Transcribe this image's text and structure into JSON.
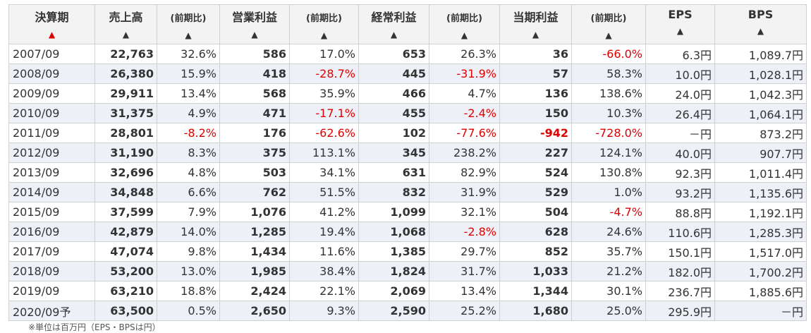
{
  "headers": [
    {
      "label": "決算期",
      "sort_active": true
    },
    {
      "label": "売上高",
      "sort_active": false
    },
    {
      "label": "(前期比)",
      "sort_active": false
    },
    {
      "label": "営業利益",
      "sort_active": false
    },
    {
      "label": "(前期比)",
      "sort_active": false
    },
    {
      "label": "経常利益",
      "sort_active": false
    },
    {
      "label": "(前期比)",
      "sort_active": false
    },
    {
      "label": "当期利益",
      "sort_active": false
    },
    {
      "label": "(前期比)",
      "sort_active": false
    },
    {
      "label": "EPS",
      "sort_active": false
    },
    {
      "label": "BPS",
      "sort_active": false
    }
  ],
  "sort_symbol": "▲",
  "rows": [
    {
      "period": "2007/09",
      "sales": "22,763",
      "sales_chg": "32.6%",
      "op": "586",
      "op_chg": "17.0%",
      "ord": "653",
      "ord_chg": "26.3%",
      "net": "36",
      "net_chg": "-66.0%",
      "eps": "6.3円",
      "bps": "1,089.7円"
    },
    {
      "period": "2008/09",
      "sales": "26,380",
      "sales_chg": "15.9%",
      "op": "418",
      "op_chg": "-28.7%",
      "ord": "445",
      "ord_chg": "-31.9%",
      "net": "57",
      "net_chg": "58.3%",
      "eps": "10.0円",
      "bps": "1,028.1円"
    },
    {
      "period": "2009/09",
      "sales": "29,911",
      "sales_chg": "13.4%",
      "op": "568",
      "op_chg": "35.9%",
      "ord": "466",
      "ord_chg": "4.7%",
      "net": "136",
      "net_chg": "138.6%",
      "eps": "24.0円",
      "bps": "1,042.3円"
    },
    {
      "period": "2010/09",
      "sales": "31,375",
      "sales_chg": "4.9%",
      "op": "471",
      "op_chg": "-17.1%",
      "ord": "455",
      "ord_chg": "-2.4%",
      "net": "150",
      "net_chg": "10.3%",
      "eps": "26.4円",
      "bps": "1,064.1円"
    },
    {
      "period": "2011/09",
      "sales": "28,801",
      "sales_chg": "-8.2%",
      "op": "176",
      "op_chg": "-62.6%",
      "ord": "102",
      "ord_chg": "-77.6%",
      "net": "-942",
      "net_chg": "-728.0%",
      "eps": "－円",
      "bps": "873.2円"
    },
    {
      "period": "2012/09",
      "sales": "31,190",
      "sales_chg": "8.3%",
      "op": "375",
      "op_chg": "113.1%",
      "ord": "345",
      "ord_chg": "238.2%",
      "net": "227",
      "net_chg": "124.1%",
      "eps": "40.0円",
      "bps": "907.7円"
    },
    {
      "period": "2013/09",
      "sales": "32,696",
      "sales_chg": "4.8%",
      "op": "503",
      "op_chg": "34.1%",
      "ord": "631",
      "ord_chg": "82.9%",
      "net": "524",
      "net_chg": "130.8%",
      "eps": "92.3円",
      "bps": "1,011.4円"
    },
    {
      "period": "2014/09",
      "sales": "34,848",
      "sales_chg": "6.6%",
      "op": "762",
      "op_chg": "51.5%",
      "ord": "832",
      "ord_chg": "31.9%",
      "net": "529",
      "net_chg": "1.0%",
      "eps": "93.2円",
      "bps": "1,135.6円"
    },
    {
      "period": "2015/09",
      "sales": "37,599",
      "sales_chg": "7.9%",
      "op": "1,076",
      "op_chg": "41.2%",
      "ord": "1,099",
      "ord_chg": "32.1%",
      "net": "504",
      "net_chg": "-4.7%",
      "eps": "88.8円",
      "bps": "1,192.1円"
    },
    {
      "period": "2016/09",
      "sales": "42,879",
      "sales_chg": "14.0%",
      "op": "1,285",
      "op_chg": "19.4%",
      "ord": "1,068",
      "ord_chg": "-2.8%",
      "net": "628",
      "net_chg": "24.6%",
      "eps": "110.6円",
      "bps": "1,285.3円"
    },
    {
      "period": "2017/09",
      "sales": "47,074",
      "sales_chg": "9.8%",
      "op": "1,434",
      "op_chg": "11.6%",
      "ord": "1,385",
      "ord_chg": "29.7%",
      "net": "852",
      "net_chg": "35.7%",
      "eps": "150.1円",
      "bps": "1,517.0円"
    },
    {
      "period": "2018/09",
      "sales": "53,200",
      "sales_chg": "13.0%",
      "op": "1,985",
      "op_chg": "38.4%",
      "ord": "1,824",
      "ord_chg": "31.7%",
      "net": "1,033",
      "net_chg": "21.2%",
      "eps": "182.0円",
      "bps": "1,700.2円"
    },
    {
      "period": "2019/09",
      "sales": "63,210",
      "sales_chg": "18.8%",
      "op": "2,424",
      "op_chg": "22.1%",
      "ord": "2,069",
      "ord_chg": "13.4%",
      "net": "1,344",
      "net_chg": "30.1%",
      "eps": "236.7円",
      "bps": "1,885.6円"
    },
    {
      "period": "2020/09予",
      "sales": "63,500",
      "sales_chg": "0.5%",
      "op": "2,650",
      "op_chg": "9.3%",
      "ord": "2,590",
      "ord_chg": "25.2%",
      "net": "1,680",
      "net_chg": "25.0%",
      "eps": "295.9円",
      "bps": "－円"
    }
  ],
  "colors": {
    "negative": "#e00000",
    "header_bg": "#f3f3f3",
    "alt_row_bg": "#eef0f8",
    "border": "#d0d0d0"
  },
  "footnote": "※単位は百万円（EPS・BPSは円）"
}
